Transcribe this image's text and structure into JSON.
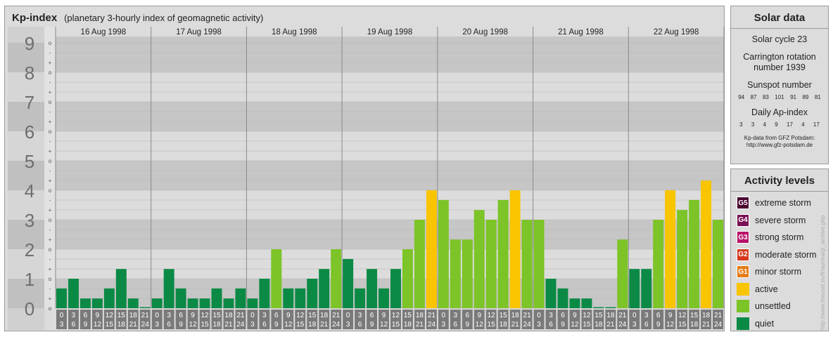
{
  "header": {
    "title": "Kp-index",
    "subtitle": "(planetary 3-hourly index of geomagnetic activity)"
  },
  "chart_data": {
    "type": "bar",
    "y_major_labels": [
      "0",
      "1",
      "2",
      "3",
      "4",
      "5",
      "6",
      "7",
      "8",
      "9"
    ],
    "y_minor_labels": [
      "o",
      "+",
      "-",
      "o",
      "+",
      "-",
      "o",
      "+",
      "-",
      "o",
      "+",
      "-",
      "o",
      "+",
      "-",
      "o",
      "+",
      "-",
      "o",
      "+",
      "-",
      "o",
      "+",
      "-",
      "o",
      "+",
      "-",
      "o"
    ],
    "ylim": [
      0,
      9.33
    ],
    "days": [
      {
        "label": "16 Aug 1998",
        "values": [
          0.67,
          1.0,
          0.33,
          0.33,
          0.67,
          1.33,
          0.33,
          0.0
        ]
      },
      {
        "label": "17 Aug 1998",
        "values": [
          0.33,
          1.33,
          0.67,
          0.33,
          0.33,
          0.67,
          0.33,
          0.67
        ]
      },
      {
        "label": "18 Aug 1998",
        "values": [
          0.33,
          1.0,
          2.0,
          0.67,
          0.67,
          1.0,
          1.33,
          2.0
        ]
      },
      {
        "label": "19 Aug 1998",
        "values": [
          1.67,
          0.67,
          1.33,
          0.67,
          1.33,
          2.0,
          3.0,
          4.0
        ]
      },
      {
        "label": "20 Aug 1998",
        "values": [
          3.67,
          2.33,
          2.33,
          3.33,
          3.0,
          3.67,
          4.0,
          3.0
        ]
      },
      {
        "label": "21 Aug 1998",
        "values": [
          3.0,
          1.0,
          0.67,
          0.33,
          0.33,
          0.0,
          0.0,
          2.33
        ]
      },
      {
        "label": "22 Aug 1998",
        "values": [
          1.33,
          1.33,
          3.0,
          4.0,
          3.33,
          3.67,
          4.33,
          3.0
        ]
      }
    ],
    "hour_slots": [
      {
        "start": "0",
        "end": "3"
      },
      {
        "start": "3",
        "end": "6"
      },
      {
        "start": "6",
        "end": "9"
      },
      {
        "start": "9",
        "end": "12"
      },
      {
        "start": "12",
        "end": "15"
      },
      {
        "start": "15",
        "end": "18"
      },
      {
        "start": "18",
        "end": "21"
      },
      {
        "start": "21",
        "end": "24"
      }
    ],
    "colors": {
      "quiet": "#0b8a45",
      "unsettled": "#7cc427",
      "active": "#f9c400",
      "minor": "#e57c18",
      "moderate": "#d4391c",
      "strong": "#b8136a",
      "severe": "#7a1053",
      "extreme": "#4a0030",
      "band_dark": "#c6c6c6",
      "band_light": "#dcdcdc",
      "axis_bg": "#7a7a7a"
    }
  },
  "solar": {
    "title": "Solar data",
    "cycle": "Solar cycle 23",
    "carrington_1": "Carrington rotation",
    "carrington_2": "number 1939",
    "sunspot_title": "Sunspot number",
    "sunspots": [
      "94",
      "87",
      "83",
      "101",
      "91",
      "89",
      "81"
    ],
    "ap_title": "Daily Ap-index",
    "ap": [
      "3",
      "3",
      "4",
      "9",
      "17",
      "4",
      "17"
    ],
    "credit_1": "Kp-data from GFZ Potsdam:",
    "credit_2": "http://www.gfz-potsdam.de"
  },
  "levels": {
    "title": "Activity levels",
    "items": [
      {
        "code": "G5",
        "label": "extreme storm",
        "color": "#4a0030"
      },
      {
        "code": "G4",
        "label": "severe storm",
        "color": "#7a1053"
      },
      {
        "code": "G3",
        "label": "strong storm",
        "color": "#b8136a"
      },
      {
        "code": "G2",
        "label": "moderate storm",
        "color": "#d4391c"
      },
      {
        "code": "G1",
        "label": "minor storm",
        "color": "#e57c18"
      },
      {
        "code": "",
        "label": "active",
        "color": "#f9c400"
      },
      {
        "code": "",
        "label": "unsettled",
        "color": "#7cc427"
      },
      {
        "code": "",
        "label": "quiet",
        "color": "#0b8a45"
      }
    ]
  },
  "side_credit": "http://www.theuset.eu/fr/aurora/gi_archive.php"
}
